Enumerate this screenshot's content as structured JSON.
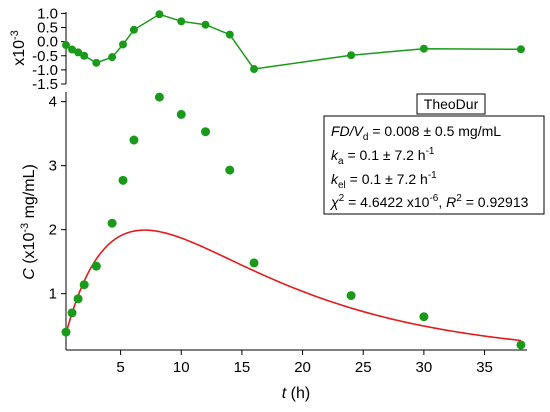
{
  "chart_data": [
    {
      "type": "line",
      "panel": "residuals",
      "y_exponent_label": "x10-3",
      "y_exponent_base": "x10",
      "y_exponent_power": "-3",
      "ylim": [
        -1.5,
        1.05
      ],
      "yticks": [
        "1.0",
        "0.5",
        "0.0",
        "-0.5",
        "-1.0",
        "-1.5"
      ],
      "ytick_values": [
        1.0,
        0.5,
        0.0,
        -0.5,
        -1.0,
        -1.5
      ],
      "series": [
        {
          "color": "#1a9a1a",
          "x": [
            0.5,
            1.0,
            1.5,
            2.0,
            3.0,
            4.3,
            5.2,
            6.1,
            8.2,
            10.0,
            12.0,
            14.0,
            16.0,
            24.0,
            30.0,
            38.0
          ],
          "y": [
            -0.12,
            -0.28,
            -0.38,
            -0.5,
            -0.75,
            -0.55,
            -0.1,
            0.42,
            0.97,
            0.72,
            0.6,
            0.25,
            -0.97,
            -0.48,
            -0.25,
            -0.27
          ]
        }
      ]
    },
    {
      "type": "scatter",
      "panel": "main",
      "xlabel_var": "t",
      "xlabel_unit": "(h)",
      "ylabel_var": "C",
      "ylabel_pre": "(x10",
      "ylabel_exp": "-3",
      "ylabel_post": " mg/mL)",
      "xlim": [
        0.5,
        38.5
      ],
      "ylim": [
        0.12,
        4.15
      ],
      "xticks": [
        "5",
        "10",
        "15",
        "20",
        "25",
        "30",
        "35"
      ],
      "xtick_values": [
        5,
        10,
        15,
        20,
        25,
        30,
        35
      ],
      "yticks": [
        "1",
        "2",
        "3",
        "4"
      ],
      "ytick_values": [
        1,
        2,
        3,
        4
      ],
      "series": [
        {
          "kind": "points",
          "color": "#1a9a1a",
          "x": [
            0.5,
            1.0,
            1.5,
            2.0,
            3.0,
            4.3,
            5.2,
            6.1,
            8.2,
            10.0,
            12.0,
            14.0,
            16.0,
            24.0,
            30.0,
            38.0
          ],
          "y": [
            0.4,
            0.7,
            0.92,
            1.14,
            1.43,
            2.1,
            2.77,
            3.4,
            4.07,
            3.8,
            3.53,
            2.93,
            1.48,
            0.97,
            0.64,
            0.2
          ]
        },
        {
          "kind": "fit-curve",
          "color": "#e41a1c",
          "model": "one-compartment oral absorption",
          "x_start": 0.5,
          "x_end": 38.0,
          "ka": 0.24,
          "kel": 0.077,
          "scale": 5.02
        }
      ],
      "legend": {
        "title": "TheoDur",
        "placement": "top-right"
      },
      "annotation": {
        "line1_a": "FD/V",
        "line1_sub": "d",
        "line1_b": " = 0.008 ± 0.5 mg/mL",
        "line2_a": "k",
        "line2_sub": "a",
        "line2_b": " = 0.1 ± 7.2 h",
        "line2_exp": "-1",
        "line3_a": "k",
        "line3_sub": "el",
        "line3_b": " = 0.1 ± 7.2 h",
        "line3_exp": "-1",
        "line4_a": "χ",
        "line4_sup": "2",
        "line4_b": " = 4.6422 x10",
        "line4_exp": "-6",
        "line4_c": ",  ",
        "line4_d": "R",
        "line4_sup2": "2",
        "line4_e": " = 0.92913"
      }
    }
  ]
}
